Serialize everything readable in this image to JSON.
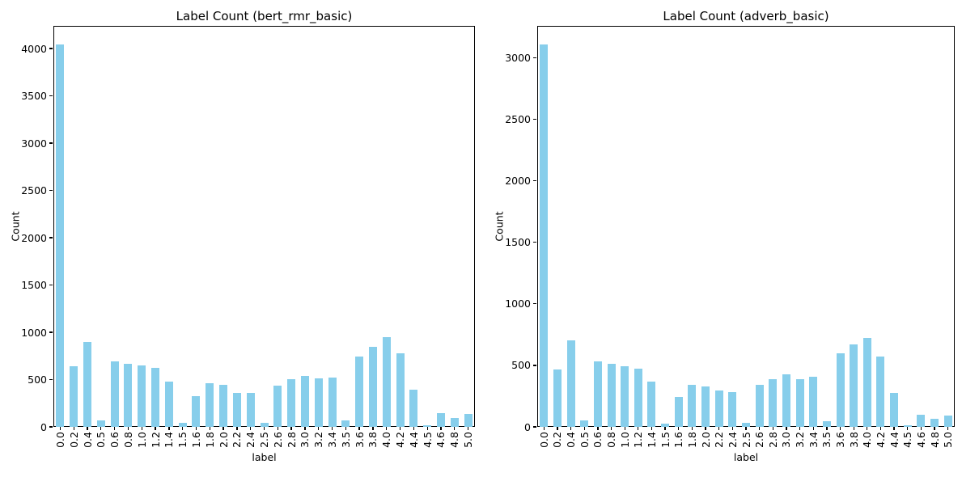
{
  "figure": {
    "background": "#ffffff",
    "axis_color": "#000000",
    "text_color": "#000000"
  },
  "chart_data": [
    {
      "type": "bar",
      "title": "Label Count (bert_rmr_basic)",
      "xlabel": "label",
      "ylabel": "Count",
      "legend": null,
      "grid": false,
      "bar_color": "#87CEEB",
      "categories": [
        "0.0",
        "0.2",
        "0.4",
        "0.5",
        "0.6",
        "0.8",
        "1.0",
        "1.2",
        "1.4",
        "1.5",
        "1.6",
        "1.8",
        "2.0",
        "2.2",
        "2.4",
        "2.5",
        "2.6",
        "2.8",
        "3.0",
        "3.2",
        "3.4",
        "3.5",
        "3.6",
        "3.8",
        "4.0",
        "4.2",
        "4.4",
        "4.5",
        "4.6",
        "4.8",
        "5.0"
      ],
      "values": [
        4040,
        645,
        895,
        65,
        695,
        670,
        650,
        620,
        480,
        45,
        325,
        460,
        445,
        355,
        355,
        45,
        435,
        505,
        540,
        510,
        520,
        65,
        745,
        845,
        945,
        775,
        390,
        20,
        145,
        95,
        140
      ],
      "yticks": [
        0,
        500,
        1000,
        1500,
        2000,
        2500,
        3000,
        3500,
        4000
      ],
      "ylim": [
        0,
        4240
      ]
    },
    {
      "type": "bar",
      "title": "Label Count (adverb_basic)",
      "xlabel": "label",
      "ylabel": "Count",
      "legend": null,
      "grid": false,
      "bar_color": "#87CEEB",
      "categories": [
        "0.0",
        "0.2",
        "0.4",
        "0.5",
        "0.6",
        "0.8",
        "1.0",
        "1.2",
        "1.4",
        "1.5",
        "1.6",
        "1.8",
        "2.0",
        "2.2",
        "2.4",
        "2.5",
        "2.6",
        "2.8",
        "3.0",
        "3.2",
        "3.4",
        "3.5",
        "3.6",
        "3.8",
        "4.0",
        "4.2",
        "4.4",
        "4.5",
        "4.6",
        "4.8",
        "5.0"
      ],
      "values": [
        3110,
        465,
        700,
        50,
        535,
        515,
        490,
        470,
        370,
        25,
        245,
        345,
        330,
        295,
        285,
        30,
        340,
        385,
        425,
        385,
        410,
        45,
        595,
        670,
        725,
        570,
        275,
        10,
        100,
        65,
        90
      ],
      "yticks": [
        0,
        500,
        1000,
        1500,
        2000,
        2500,
        3000
      ],
      "ylim": [
        0,
        3260
      ]
    }
  ]
}
